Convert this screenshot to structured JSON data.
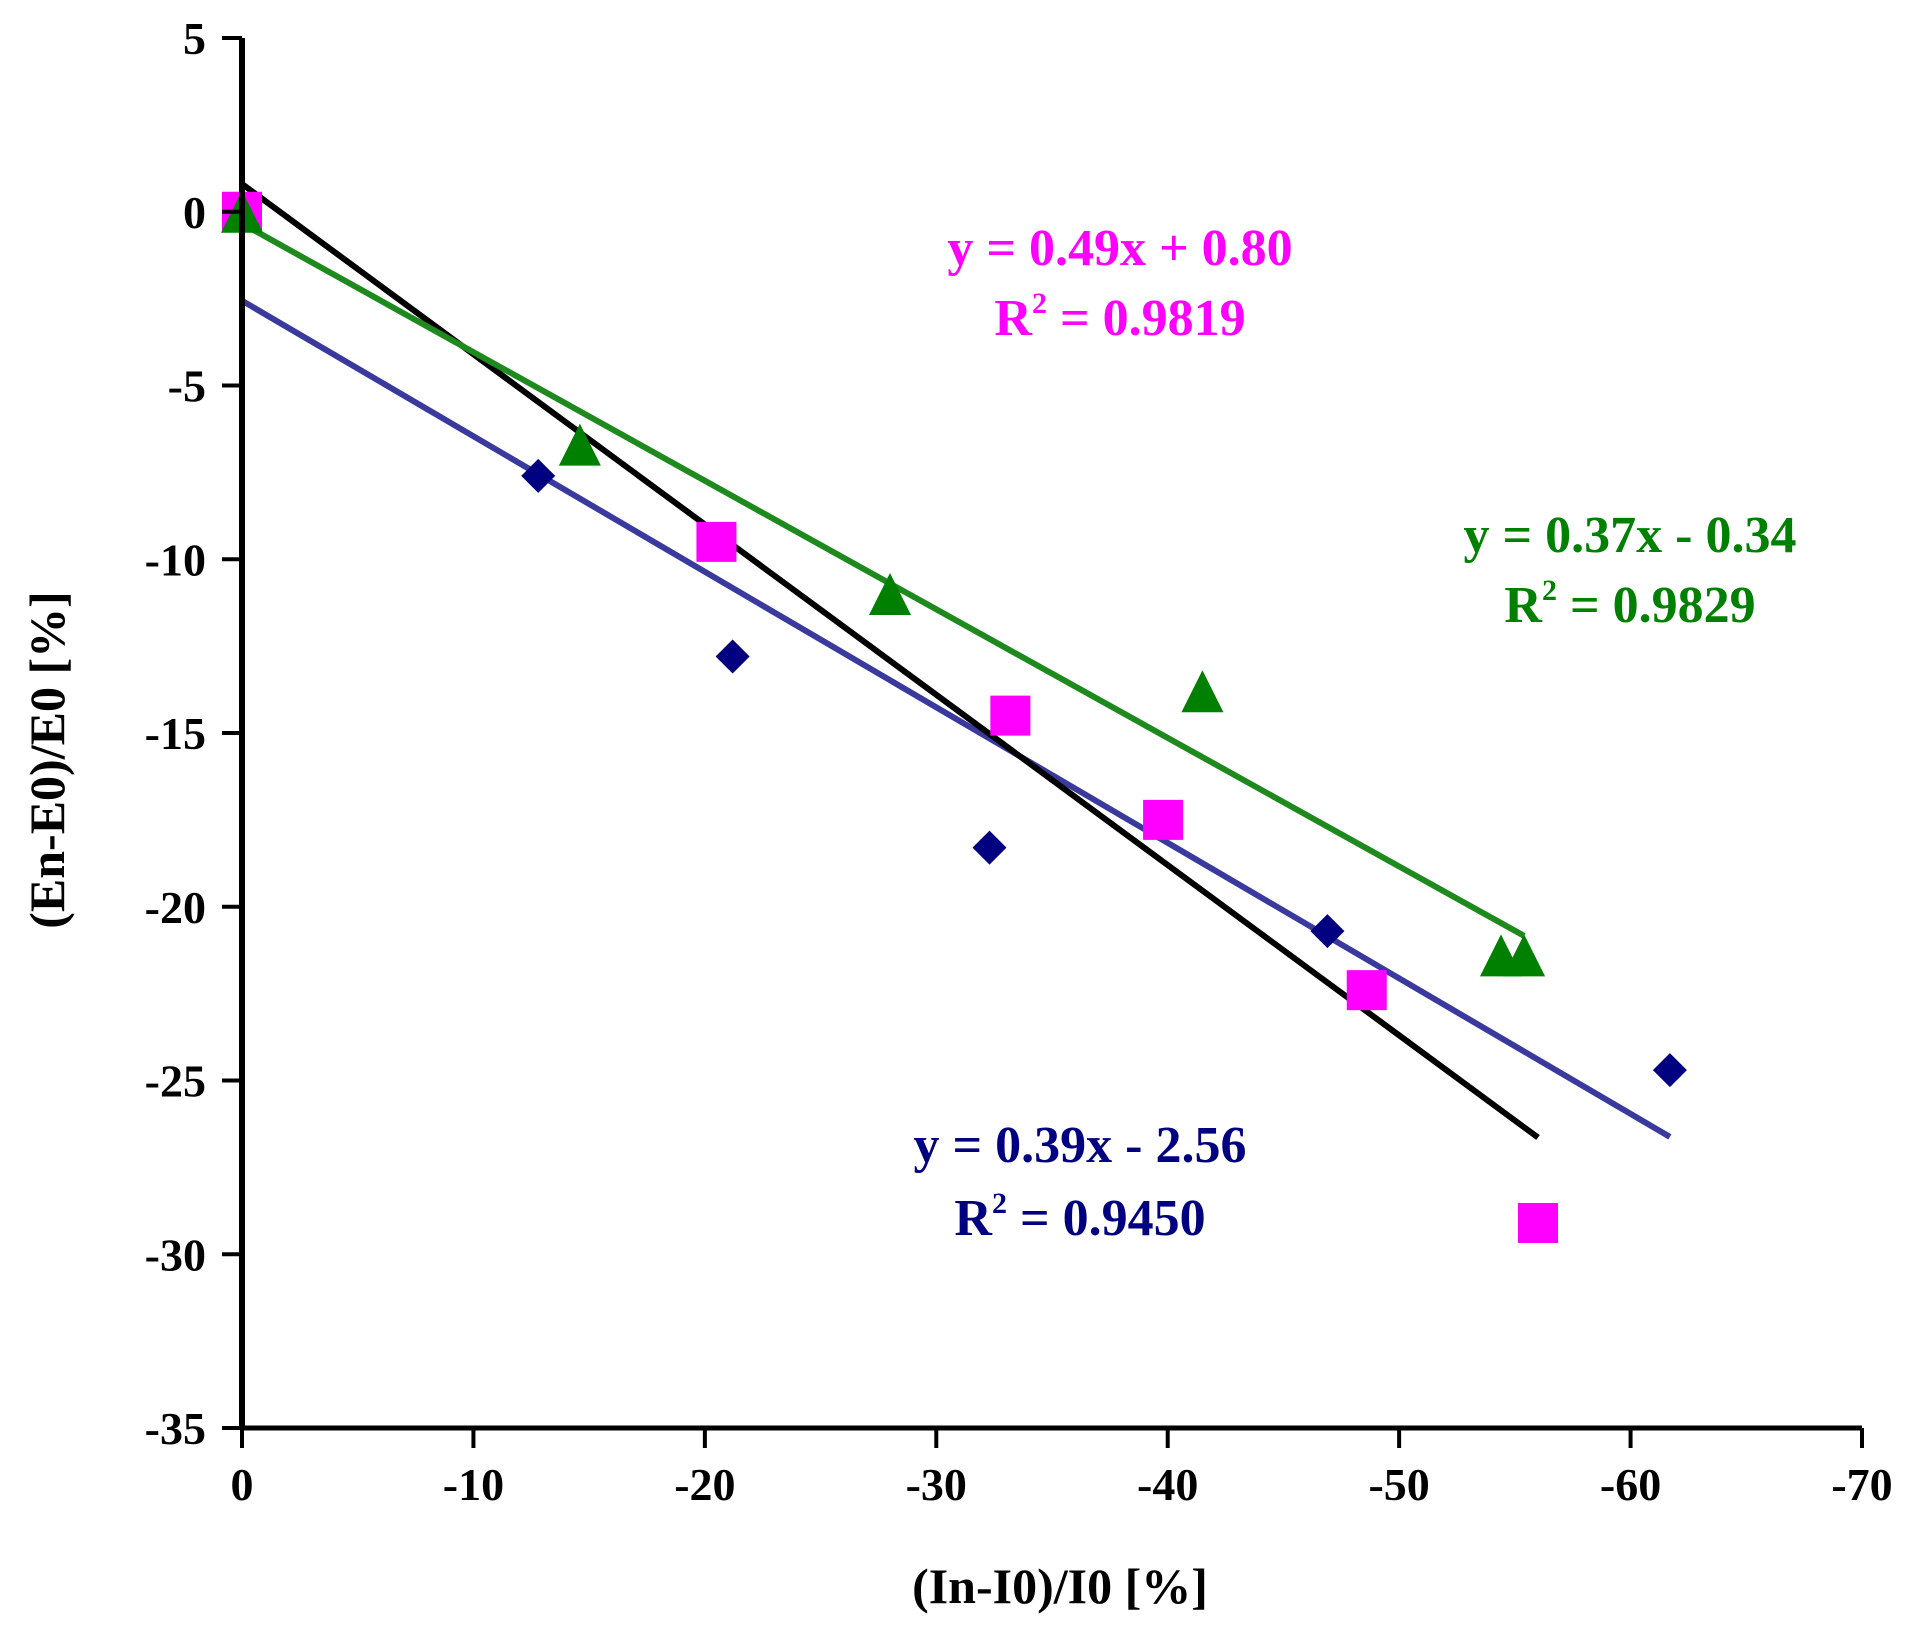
{
  "chart_data": {
    "type": "scatter",
    "title": "",
    "xlabel": "(In-I0)/I0  [%]",
    "ylabel": "(En-E0)/E0  [%]",
    "xlim": [
      0,
      -70
    ],
    "ylim": [
      -35,
      5
    ],
    "x_ticks": [
      0,
      -10,
      -20,
      -30,
      -40,
      -50,
      -60,
      -70
    ],
    "x_tick_labels": [
      "0",
      "-10",
      "-20",
      "-30",
      "-40",
      "-50",
      "-60",
      "-70"
    ],
    "y_ticks": [
      5,
      0,
      -5,
      -10,
      -15,
      -20,
      -25,
      -30,
      -35
    ],
    "y_tick_labels": [
      "5",
      "0",
      "-5",
      "-10",
      "-15",
      "-20",
      "-25",
      "-30",
      "-35"
    ],
    "grid": false,
    "series": [
      {
        "name": "diamond-series",
        "marker": "diamond",
        "color": "#000080",
        "line_color": "#3a3a9e",
        "points": [
          [
            -12.8,
            -7.6
          ],
          [
            -21.2,
            -12.8
          ],
          [
            -32.3,
            -18.3
          ],
          [
            -46.9,
            -20.7
          ],
          [
            -61.7,
            -24.7
          ]
        ],
        "fit": {
          "slope": 0.39,
          "intercept": -2.56,
          "x_range": [
            0,
            -61.7
          ]
        },
        "equation": "y = 0.39x - 2.56",
        "r2_prefix": "R",
        "r2_sup": "2",
        "r2_value": " = 0.9450"
      },
      {
        "name": "square-series",
        "marker": "square",
        "color": "#ff00ff",
        "line_color": "#000000",
        "points": [
          [
            0,
            0
          ],
          [
            -20.5,
            -9.5
          ],
          [
            -33.2,
            -14.5
          ],
          [
            -39.8,
            -17.5
          ],
          [
            -48.6,
            -22.4
          ],
          [
            -56.0,
            -29.1
          ]
        ],
        "fit": {
          "slope": 0.49,
          "intercept": 0.8,
          "x_range": [
            0,
            -56.0
          ]
        },
        "equation": "y = 0.49x + 0.80",
        "r2_prefix": "R",
        "r2_sup": "2",
        "r2_value": " = 0.9819"
      },
      {
        "name": "triangle-series",
        "marker": "triangle",
        "color": "#008000",
        "line_color": "#1e8a1e",
        "points": [
          [
            0,
            0
          ],
          [
            -14.6,
            -6.7
          ],
          [
            -28.0,
            -11.0
          ],
          [
            -41.5,
            -13.8
          ],
          [
            -54.4,
            -21.4
          ],
          [
            -55.4,
            -21.4
          ]
        ],
        "fit": {
          "slope": 0.37,
          "intercept": -0.34,
          "x_range": [
            0,
            -55.4
          ]
        },
        "equation": "y = 0.37x - 0.34",
        "r2_prefix": "R",
        "r2_sup": "2",
        "r2_value": " = 0.9829"
      }
    ]
  }
}
